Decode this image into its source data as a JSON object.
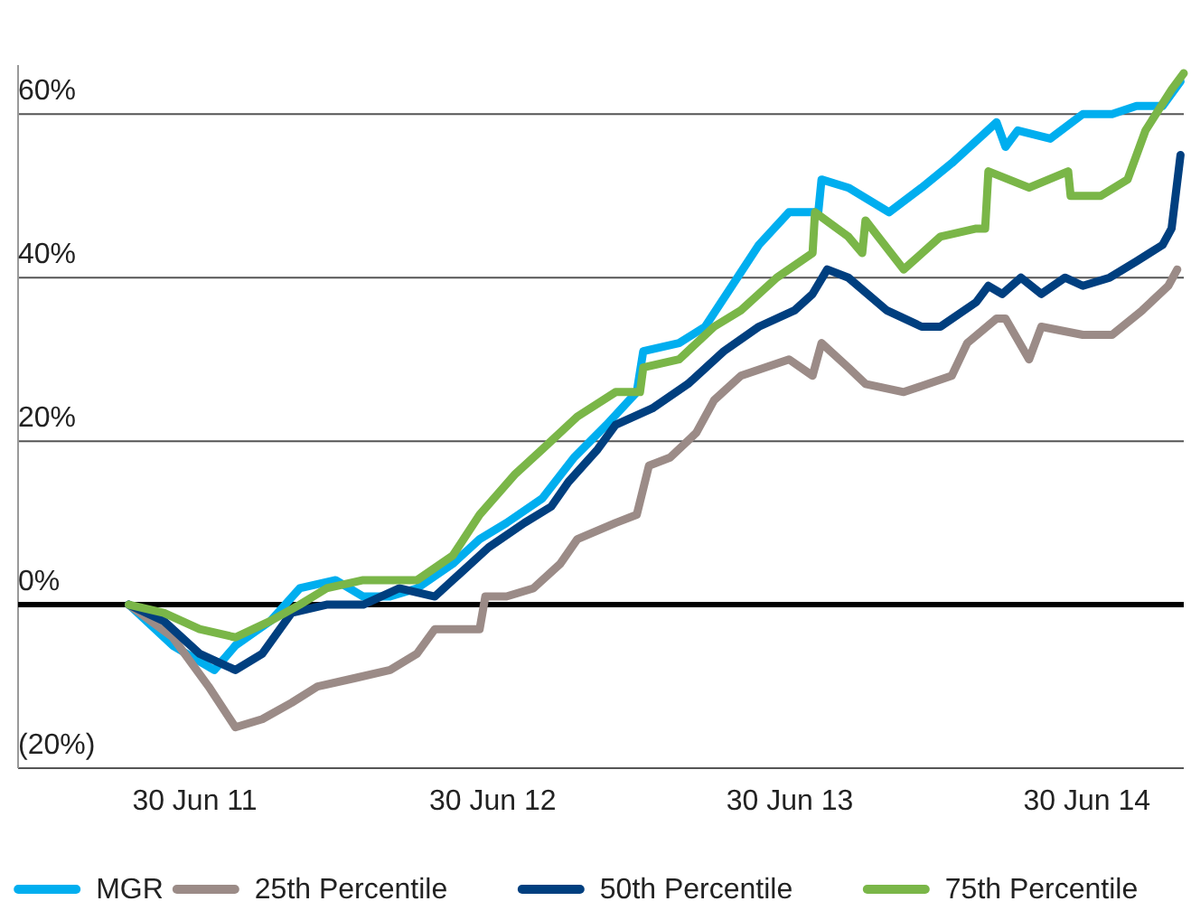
{
  "chart_data": {
    "type": "line",
    "xlim": [
      "2010-11-25",
      "2014-10-27"
    ],
    "xticks": [
      {
        "value": "2011-06-30",
        "label": "30 Jun 11"
      },
      {
        "value": "2012-06-30",
        "label": "30 Jun 12"
      },
      {
        "value": "2013-06-30",
        "label": "30 Jun 13"
      },
      {
        "value": "2014-06-30",
        "label": "30 Jun 14"
      }
    ],
    "ylim": [
      -20,
      66
    ],
    "yticks": [
      {
        "value": -20,
        "label": "(20%)"
      },
      {
        "value": 0,
        "label": "0%"
      },
      {
        "value": 20,
        "label": "20%"
      },
      {
        "value": 40,
        "label": "40%"
      },
      {
        "value": 60,
        "label": "60%"
      }
    ],
    "grid": "y",
    "legend": "bottom",
    "marker": "none",
    "line_style": "solid",
    "series": [
      {
        "name": "MGR",
        "color": "#00aeef",
        "x": [
          "2011-04-10",
          "2011-06-03",
          "2011-07-24",
          "2011-08-19",
          "2011-10-01",
          "2011-11-06",
          "2011-12-20",
          "2012-01-23",
          "2012-02-25",
          "2012-03-29",
          "2012-05-12",
          "2012-06-14",
          "2012-07-17",
          "2012-08-30",
          "2012-10-08",
          "2012-11-17",
          "2012-12-24",
          "2013-01-01",
          "2013-02-14",
          "2013-03-18",
          "2013-04-20",
          "2013-05-23",
          "2013-06-29",
          "2013-08-04",
          "2013-08-08",
          "2013-09-10",
          "2013-10-30",
          "2013-12-09",
          "2014-01-15",
          "2014-03-11",
          "2014-03-22",
          "2014-04-06",
          "2014-05-16",
          "2014-06-25",
          "2014-07-31",
          "2014-08-30",
          "2014-10-01",
          "2014-10-23"
        ],
        "values": [
          0,
          -5,
          -8,
          -5,
          -2,
          2,
          3,
          1,
          1,
          2,
          5,
          8,
          10,
          13,
          18,
          22,
          26,
          31,
          32,
          34,
          39,
          44,
          48,
          48,
          52,
          51,
          48,
          51,
          54,
          59,
          56,
          58,
          57,
          60,
          60,
          61,
          61,
          64
        ]
      },
      {
        "name": "25th Percentile",
        "color": "#9b8b87",
        "x": [
          "2011-04-10",
          "2011-06-03",
          "2011-07-17",
          "2011-08-19",
          "2011-09-21",
          "2011-10-27",
          "2011-11-28",
          "2012-01-12",
          "2012-02-25",
          "2012-03-29",
          "2012-04-20",
          "2012-06-14",
          "2012-06-21",
          "2012-07-17",
          "2012-08-19",
          "2012-09-21",
          "2012-10-12",
          "2012-11-28",
          "2012-12-24",
          "2013-01-08",
          "2013-02-03",
          "2013-03-07",
          "2013-03-29",
          "2013-05-01",
          "2013-06-29",
          "2013-07-28",
          "2013-08-08",
          "2013-09-10",
          "2013-10-01",
          "2013-11-17",
          "2014-01-15",
          "2014-02-03",
          "2014-03-11",
          "2014-03-22",
          "2014-04-20",
          "2014-05-05",
          "2014-06-25",
          "2014-07-31",
          "2014-09-06",
          "2014-10-08",
          "2014-10-19"
        ],
        "values": [
          0,
          -4,
          -10,
          -15,
          -14,
          -12,
          -10,
          -9,
          -8,
          -6,
          -3,
          -3,
          1,
          1,
          2,
          5,
          8,
          10,
          11,
          17,
          18,
          21,
          25,
          28,
          30,
          28,
          32,
          29,
          27,
          26,
          28,
          32,
          35,
          35,
          30,
          34,
          33,
          33,
          36,
          39,
          41
        ]
      },
      {
        "name": "50th Percentile",
        "color": "#003f7f",
        "x": [
          "2011-04-10",
          "2011-05-23",
          "2011-07-06",
          "2011-08-19",
          "2011-09-21",
          "2011-10-27",
          "2011-12-09",
          "2012-01-23",
          "2012-03-07",
          "2012-04-20",
          "2012-05-23",
          "2012-06-25",
          "2012-08-08",
          "2012-09-10",
          "2012-10-01",
          "2012-11-06",
          "2012-11-28",
          "2013-01-12",
          "2013-02-25",
          "2013-04-10",
          "2013-05-23",
          "2013-07-06",
          "2013-07-28",
          "2013-08-15",
          "2013-09-10",
          "2013-10-27",
          "2013-12-09",
          "2014-01-01",
          "2014-02-14",
          "2014-03-01",
          "2014-03-18",
          "2014-04-10",
          "2014-05-05",
          "2014-06-03",
          "2014-06-25",
          "2014-07-28",
          "2014-08-30",
          "2014-10-01",
          "2014-10-12",
          "2014-10-23"
        ],
        "values": [
          0,
          -2,
          -6,
          -8,
          -6,
          -1,
          0,
          0,
          2,
          1,
          4,
          7,
          10,
          12,
          15,
          19,
          22,
          24,
          27,
          31,
          34,
          36,
          38,
          41,
          40,
          36,
          34,
          34,
          37,
          39,
          38,
          40,
          38,
          40,
          39,
          40,
          42,
          44,
          46,
          55
        ]
      },
      {
        "name": "75th Percentile",
        "color": "#7ab648",
        "x": [
          "2011-04-10",
          "2011-05-23",
          "2011-07-06",
          "2011-08-19",
          "2011-10-01",
          "2011-11-06",
          "2011-12-09",
          "2012-01-23",
          "2012-03-29",
          "2012-05-12",
          "2012-06-14",
          "2012-07-28",
          "2012-08-30",
          "2012-10-12",
          "2012-11-28",
          "2012-12-28",
          "2013-01-01",
          "2013-02-14",
          "2013-03-29",
          "2013-05-01",
          "2013-06-14",
          "2013-07-28",
          "2013-07-31",
          "2013-09-10",
          "2013-09-27",
          "2013-10-01",
          "2013-11-17",
          "2014-01-01",
          "2014-02-14",
          "2014-02-25",
          "2014-03-01",
          "2014-04-20",
          "2014-06-07",
          "2014-06-10",
          "2014-07-17",
          "2014-08-19",
          "2014-09-10",
          "2014-10-12",
          "2014-10-27"
        ],
        "values": [
          0,
          -1,
          -3,
          -4,
          -2,
          0,
          2,
          3,
          3,
          6,
          11,
          16,
          19,
          23,
          26,
          26,
          29,
          30,
          34,
          36,
          40,
          43,
          48,
          45,
          43,
          47,
          41,
          45,
          46,
          46,
          53,
          51,
          53,
          50,
          50,
          52,
          58,
          63,
          65
        ]
      }
    ]
  }
}
